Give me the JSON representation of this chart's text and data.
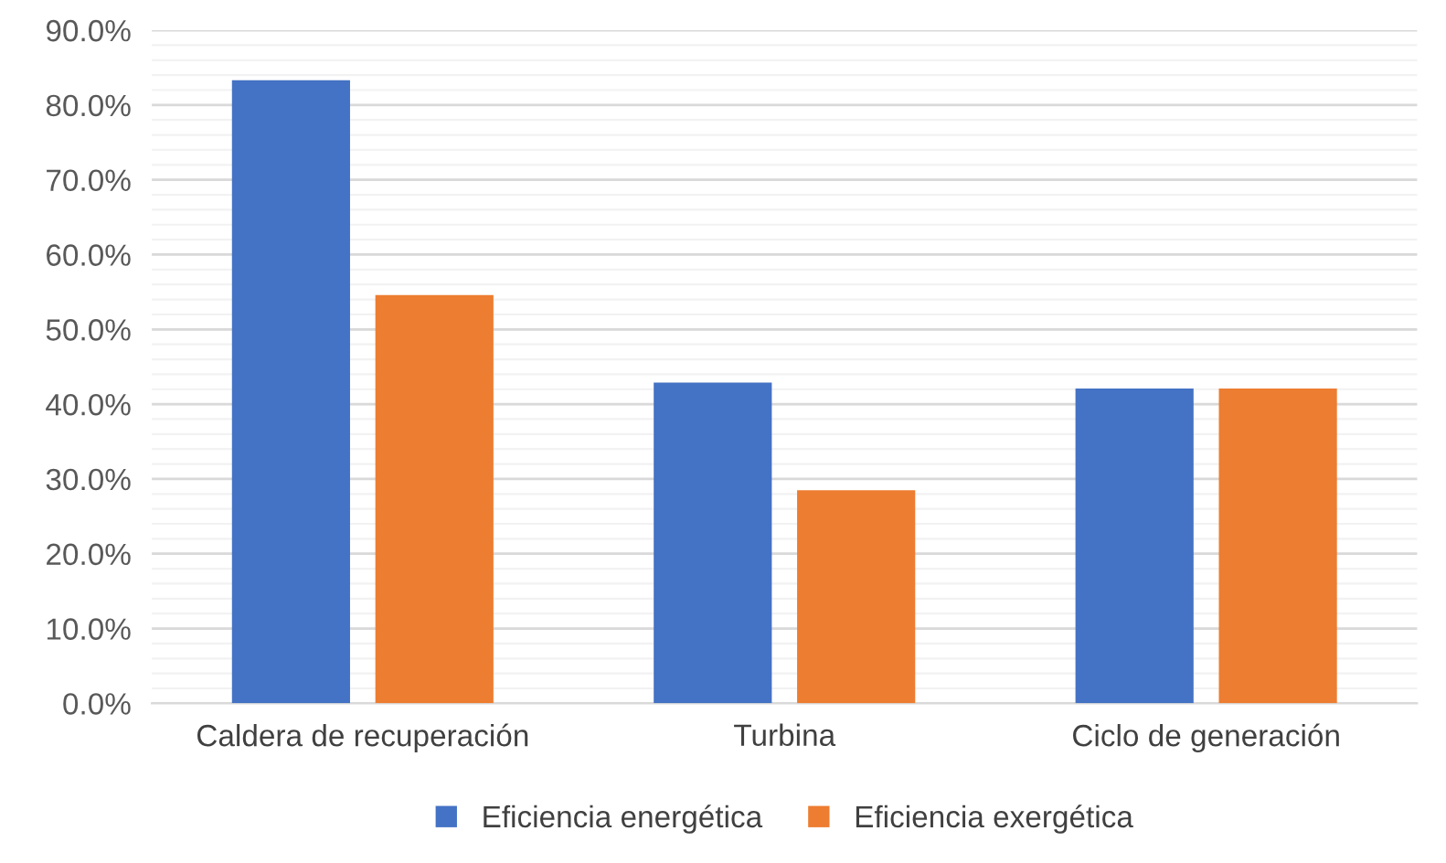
{
  "chart_data": {
    "type": "bar",
    "categories": [
      "Caldera de recuperación",
      "Turbina",
      "Ciclo de generación"
    ],
    "series": [
      {
        "name": "Eficiencia energética",
        "color": "#4472c4",
        "values": [
          83.3,
          42.9,
          42.1
        ]
      },
      {
        "name": "Eficiencia exergética",
        "color": "#ed7d31",
        "values": [
          54.6,
          28.5,
          42.1
        ]
      }
    ],
    "ylim": [
      0,
      90
    ],
    "yticks": [
      {
        "value": 0,
        "label": "0.0%"
      },
      {
        "value": 10,
        "label": "10.0%"
      },
      {
        "value": 20,
        "label": "20.0%"
      },
      {
        "value": 30,
        "label": "30.0%"
      },
      {
        "value": 40,
        "label": "40.0%"
      },
      {
        "value": 50,
        "label": "50.0%"
      },
      {
        "value": 60,
        "label": "60.0%"
      },
      {
        "value": 70,
        "label": "70.0%"
      },
      {
        "value": 80,
        "label": "80.0%"
      },
      {
        "value": 90,
        "label": "90.0%"
      }
    ],
    "grid": "y",
    "legend": "bottom"
  }
}
